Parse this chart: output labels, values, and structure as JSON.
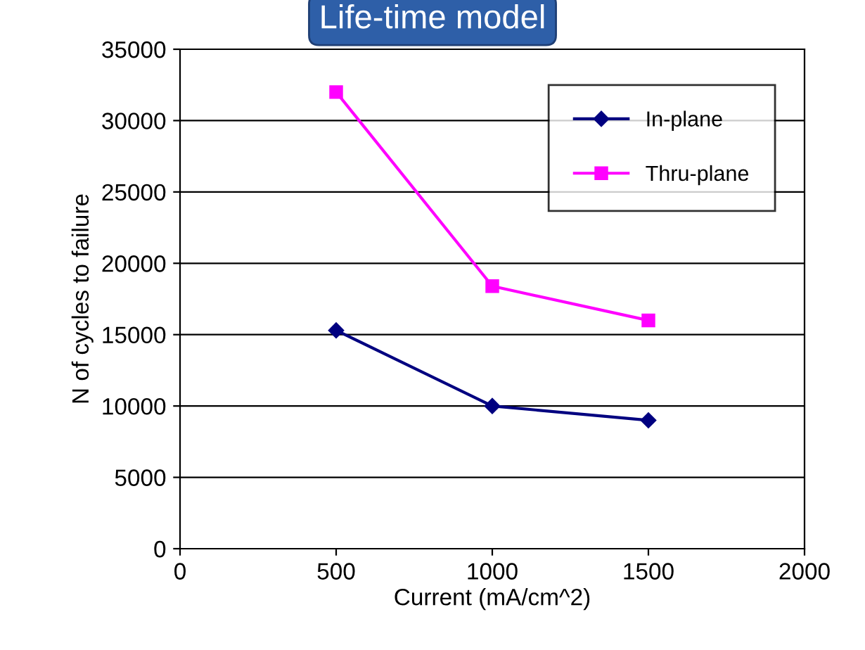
{
  "chart_data": {
    "type": "line",
    "title": "Life-time model",
    "xlabel": "Current (mA/cm^2)",
    "ylabel": "N of cycles to failure",
    "x": [
      500,
      1000,
      1500
    ],
    "series": [
      {
        "name": "In-plane",
        "color": "#000080",
        "marker": "diamond",
        "values": [
          15300,
          10000,
          9000
        ]
      },
      {
        "name": "Thru-plane",
        "color": "#ff00ff",
        "marker": "square",
        "values": [
          32000,
          18400,
          16000
        ]
      }
    ],
    "xlim": [
      0,
      2000
    ],
    "xticks": [
      0,
      500,
      1000,
      1500,
      2000
    ],
    "ylim": [
      0,
      35000
    ],
    "yticks": [
      0,
      5000,
      10000,
      15000,
      20000,
      25000,
      30000,
      35000
    ],
    "grid": "y",
    "legend": "top right"
  }
}
